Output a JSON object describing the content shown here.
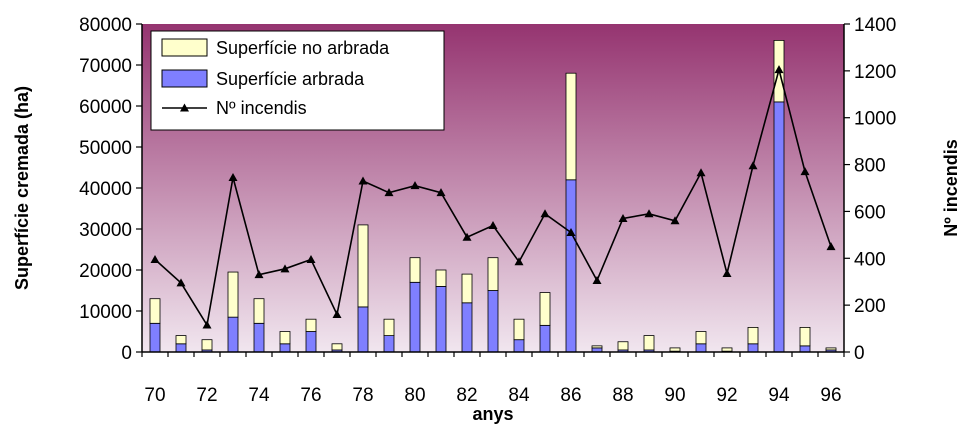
{
  "chart_data": {
    "type": "bar",
    "stacked": true,
    "categories": [
      "70",
      "71",
      "72",
      "73",
      "74",
      "75",
      "76",
      "77",
      "78",
      "79",
      "80",
      "81",
      "82",
      "83",
      "84",
      "85",
      "86",
      "87",
      "88",
      "89",
      "90",
      "91",
      "92",
      "93",
      "94",
      "95",
      "96"
    ],
    "x_tick_labels": [
      "70",
      "72",
      "74",
      "76",
      "78",
      "80",
      "82",
      "84",
      "86",
      "88",
      "90",
      "92",
      "94",
      "96"
    ],
    "xlabel": "anys",
    "ylabel_left": "Superfície cremada (ha)",
    "ylabel_right": "Nº incendis",
    "ylim_left": [
      0,
      80000
    ],
    "ylim_right": [
      0,
      1400
    ],
    "yticks_left": [
      "0",
      "10000",
      "20000",
      "30000",
      "40000",
      "50000",
      "60000",
      "70000",
      "80000"
    ],
    "yticks_right": [
      "0",
      "200",
      "400",
      "600",
      "800",
      "1000",
      "1200",
      "1400"
    ],
    "series": [
      {
        "name": "Superfície arbrada",
        "kind": "bar",
        "axis": "left",
        "color": "#7f7fff",
        "values": [
          7000,
          2000,
          500,
          8500,
          7000,
          2000,
          5000,
          500,
          11000,
          4000,
          17000,
          16000,
          12000,
          15000,
          3000,
          6500,
          42000,
          1000,
          500,
          500,
          200,
          2000,
          200,
          2000,
          61000,
          1500,
          500
        ]
      },
      {
        "name": "Superfície no arbrada",
        "kind": "bar",
        "axis": "left",
        "color": "#ffffcc",
        "values": [
          6000,
          2000,
          2500,
          11000,
          6000,
          3000,
          3000,
          1500,
          20000,
          4000,
          6000,
          4000,
          7000,
          8000,
          5000,
          8000,
          26000,
          500,
          2000,
          3500,
          800,
          3000,
          800,
          4000,
          15000,
          4500,
          500
        ]
      },
      {
        "name": "Nº incendis",
        "kind": "line",
        "axis": "right",
        "color": "#000000",
        "values": [
          395,
          295,
          115,
          745,
          330,
          355,
          395,
          160,
          730,
          680,
          710,
          680,
          490,
          540,
          385,
          590,
          510,
          305,
          570,
          590,
          560,
          765,
          335,
          795,
          1205,
          770,
          450
        ]
      }
    ],
    "legend": {
      "placement": "top-left",
      "entries": [
        "Superfície no arbrada",
        "Superfície arbrada",
        "Nº incendis"
      ]
    },
    "plot_background": {
      "gradient_top": "#953470",
      "gradient_bottom": "#f1e6ef"
    }
  }
}
